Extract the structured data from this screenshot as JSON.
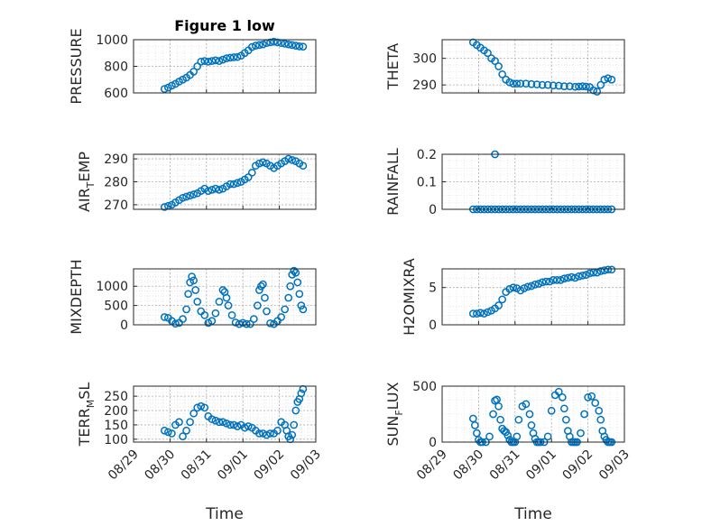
{
  "figure": {
    "title": "Figure 1 low"
  },
  "colors": {
    "marker": "#0072BD",
    "axis": "#262626",
    "grid": "#b0b0b0"
  },
  "chart_data": [
    {
      "type": "scatter",
      "ylabel": "PRESSURE",
      "title": "Figure 1 low",
      "xlim": [
        "08/29",
        "09/03"
      ],
      "ylim": [
        600,
        1000
      ],
      "yticks": [
        600,
        800,
        1000
      ],
      "yticklabels": [
        "600",
        "800",
        "1000"
      ],
      "xticklabels": [],
      "xlabel": "",
      "series": [
        {
          "x": [
            0.85,
            0.95,
            1.05,
            1.15,
            1.25,
            1.35,
            1.45,
            1.55,
            1.65,
            1.75,
            1.85,
            1.95,
            2.05,
            2.15,
            2.25,
            2.35,
            2.45,
            2.55,
            2.65,
            2.75,
            2.85,
            2.95,
            3.05,
            3.15,
            3.25,
            3.35,
            3.45,
            3.55,
            3.65,
            3.75,
            3.85,
            3.95,
            4.05,
            4.15,
            4.25,
            4.35,
            4.45,
            4.55,
            4.65
          ],
          "y": [
            630,
            640,
            655,
            668,
            685,
            700,
            715,
            735,
            760,
            800,
            835,
            840,
            835,
            840,
            845,
            840,
            850,
            860,
            865,
            868,
            870,
            880,
            900,
            920,
            945,
            955,
            960,
            965,
            975,
            980,
            985,
            980,
            975,
            970,
            965,
            960,
            955,
            950,
            948
          ]
        }
      ]
    },
    {
      "type": "scatter",
      "ylabel": "THETA",
      "xlim": [
        "08/29",
        "09/03"
      ],
      "ylim": [
        287,
        307
      ],
      "yticks": [
        290,
        300
      ],
      "yticklabels": [
        "290",
        "300"
      ],
      "xticklabels": [],
      "xlabel": "",
      "series": [
        {
          "x": [
            0.85,
            0.95,
            1.05,
            1.15,
            1.25,
            1.35,
            1.45,
            1.55,
            1.65,
            1.75,
            1.85,
            1.95,
            2.05,
            2.15,
            2.3,
            2.45,
            2.6,
            2.75,
            2.9,
            3.05,
            3.2,
            3.35,
            3.5,
            3.65,
            3.75,
            3.85,
            3.95,
            4.05,
            4.15,
            4.25,
            4.35,
            4.45,
            4.55,
            4.65
          ],
          "y": [
            306,
            305,
            304,
            303,
            302,
            300,
            299,
            297,
            294,
            292,
            291,
            290.5,
            290.5,
            290.5,
            290.5,
            290.3,
            290.2,
            290,
            290,
            289.8,
            289.7,
            289.5,
            289.5,
            289.3,
            289.4,
            289.5,
            289.4,
            289.2,
            288,
            287.5,
            290,
            292,
            292.5,
            292
          ]
        }
      ]
    },
    {
      "type": "scatter",
      "ylabel": "AIR_TEMP",
      "ylabel_main": "AIR",
      "ylabel_sub": "T",
      "ylabel_rest": "EMP",
      "xlim": [
        "08/29",
        "09/03"
      ],
      "ylim": [
        268,
        292
      ],
      "yticks": [
        270,
        280,
        290
      ],
      "yticklabels": [
        "270",
        "280",
        "290"
      ],
      "xticklabels": [],
      "xlabel": "",
      "series": [
        {
          "x": [
            0.85,
            0.95,
            1.05,
            1.15,
            1.25,
            1.35,
            1.45,
            1.55,
            1.65,
            1.75,
            1.85,
            1.95,
            2.05,
            2.15,
            2.25,
            2.35,
            2.45,
            2.55,
            2.65,
            2.75,
            2.85,
            2.95,
            3.05,
            3.15,
            3.25,
            3.35,
            3.45,
            3.55,
            3.65,
            3.75,
            3.85,
            3.95,
            4.05,
            4.15,
            4.25,
            4.35,
            4.45,
            4.55,
            4.65
          ],
          "y": [
            269,
            269.5,
            270,
            271,
            272,
            273,
            273.5,
            274,
            274.5,
            275,
            276,
            277,
            276,
            276.5,
            277,
            276.5,
            277,
            278,
            279,
            279,
            279.5,
            280,
            281,
            282,
            284,
            287,
            288,
            288.5,
            288,
            287,
            286,
            287,
            288,
            289,
            290,
            289.5,
            289,
            288,
            287
          ]
        }
      ]
    },
    {
      "type": "scatter",
      "ylabel": "RAINFALL",
      "xlim": [
        "08/29",
        "09/03"
      ],
      "ylim": [
        0,
        0.2
      ],
      "yticks": [
        0,
        0.1,
        0.2
      ],
      "yticklabels": [
        "0",
        "0.1",
        "0.2"
      ],
      "xticklabels": [],
      "xlabel": "",
      "series": [
        {
          "x": [
            0.85,
            0.95,
            1.05,
            1.15,
            1.25,
            1.35,
            1.45,
            1.55,
            1.65,
            1.75,
            1.85,
            1.95,
            2.05,
            2.15,
            2.25,
            2.35,
            2.45,
            2.55,
            2.65,
            2.75,
            2.85,
            2.95,
            3.05,
            3.15,
            3.25,
            3.35,
            3.45,
            3.55,
            3.65,
            3.75,
            3.85,
            3.95,
            4.05,
            4.15,
            4.25,
            4.35,
            4.45,
            4.55,
            4.65,
            1.45
          ],
          "y": [
            0,
            0,
            0,
            0,
            0,
            0,
            0,
            0,
            0,
            0,
            0,
            0,
            0,
            0,
            0,
            0,
            0,
            0,
            0,
            0,
            0,
            0,
            0,
            0,
            0,
            0,
            0,
            0,
            0,
            0,
            0,
            0,
            0,
            0,
            0,
            0,
            0,
            0,
            0,
            0.2
          ]
        }
      ]
    },
    {
      "type": "scatter",
      "ylabel": "MIXDEPTH",
      "xlim": [
        "08/29",
        "09/03"
      ],
      "ylim": [
        0,
        1450
      ],
      "yticks": [
        0,
        500,
        1000
      ],
      "yticklabels": [
        "0",
        "500",
        "1000"
      ],
      "xticklabels": [],
      "xlabel": "",
      "series": [
        {
          "x": [
            0.85,
            0.95,
            1.05,
            1.15,
            1.25,
            1.35,
            1.45,
            1.5,
            1.55,
            1.6,
            1.65,
            1.7,
            1.75,
            1.85,
            1.95,
            2.05,
            2.15,
            2.25,
            2.35,
            2.45,
            2.5,
            2.55,
            2.6,
            2.7,
            2.8,
            2.9,
            3.0,
            3.1,
            3.2,
            3.3,
            3.4,
            3.45,
            3.5,
            3.55,
            3.6,
            3.65,
            3.75,
            3.85,
            3.95,
            4.05,
            4.15,
            4.25,
            4.3,
            4.35,
            4.4,
            4.45,
            4.5,
            4.55,
            4.6,
            4.65
          ],
          "y": [
            200,
            180,
            100,
            30,
            50,
            150,
            400,
            800,
            1100,
            1250,
            1150,
            900,
            600,
            350,
            250,
            50,
            100,
            300,
            600,
            900,
            850,
            700,
            500,
            250,
            60,
            20,
            50,
            20,
            20,
            150,
            500,
            900,
            1000,
            1050,
            700,
            350,
            40,
            20,
            100,
            200,
            400,
            700,
            1000,
            1300,
            1400,
            1350,
            1100,
            800,
            500,
            400
          ]
        }
      ]
    },
    {
      "type": "scatter",
      "ylabel": "H2OMIXRA",
      "xlim": [
        "08/29",
        "09/03"
      ],
      "ylim": [
        0,
        7.5
      ],
      "yticks": [
        0,
        5
      ],
      "yticklabels": [
        "0",
        "5"
      ],
      "xticklabels": [],
      "xlabel": "",
      "series": [
        {
          "x": [
            0.85,
            0.95,
            1.05,
            1.15,
            1.25,
            1.35,
            1.45,
            1.55,
            1.65,
            1.75,
            1.85,
            1.95,
            2.05,
            2.15,
            2.25,
            2.35,
            2.45,
            2.55,
            2.65,
            2.75,
            2.85,
            2.95,
            3.05,
            3.15,
            3.25,
            3.35,
            3.45,
            3.55,
            3.65,
            3.75,
            3.85,
            3.95,
            4.05,
            4.15,
            4.25,
            4.35,
            4.45,
            4.55,
            4.65
          ],
          "y": [
            1.5,
            1.5,
            1.6,
            1.5,
            1.7,
            1.9,
            2.2,
            2.6,
            3.4,
            4.4,
            4.8,
            5.0,
            4.9,
            4.6,
            4.9,
            5.1,
            5.2,
            5.4,
            5.5,
            5.7,
            5.8,
            5.8,
            6.0,
            6.0,
            6.0,
            6.2,
            6.3,
            6.4,
            6.3,
            6.5,
            6.6,
            6.7,
            6.9,
            7.0,
            7.0,
            7.2,
            7.3,
            7.4,
            7.4
          ]
        }
      ]
    },
    {
      "type": "scatter",
      "ylabel": "TERR_MSL",
      "ylabel_main": "TERR",
      "ylabel_sub": "M",
      "ylabel_rest": "SL",
      "xlim": [
        "08/29",
        "09/03"
      ],
      "ylim": [
        90,
        285
      ],
      "yticks": [
        100,
        150,
        200,
        250
      ],
      "yticklabels": [
        "100",
        "150",
        "200",
        "250"
      ],
      "xticklabels": [
        "08/29",
        "08/30",
        "08/31",
        "09/01",
        "09/02",
        "09/03"
      ],
      "xlabel": "Time",
      "series": [
        {
          "x": [
            0.85,
            0.95,
            1.05,
            1.15,
            1.25,
            1.35,
            1.45,
            1.55,
            1.65,
            1.75,
            1.85,
            1.95,
            2.05,
            2.15,
            2.25,
            2.35,
            2.45,
            2.55,
            2.65,
            2.75,
            2.85,
            2.95,
            3.05,
            3.15,
            3.25,
            3.35,
            3.45,
            3.55,
            3.65,
            3.75,
            3.85,
            3.95,
            4.05,
            4.15,
            4.2,
            4.25,
            4.3,
            4.35,
            4.4,
            4.45,
            4.5,
            4.55,
            4.6,
            4.65
          ],
          "y": [
            130,
            125,
            120,
            150,
            160,
            110,
            130,
            160,
            190,
            210,
            215,
            210,
            180,
            170,
            165,
            160,
            160,
            155,
            150,
            150,
            145,
            150,
            140,
            145,
            140,
            130,
            120,
            120,
            115,
            120,
            120,
            130,
            160,
            150,
            130,
            110,
            100,
            115,
            150,
            200,
            230,
            240,
            260,
            275
          ]
        }
      ]
    },
    {
      "type": "scatter",
      "ylabel": "SUN_FLUX",
      "ylabel_main": "SUN",
      "ylabel_sub": "F",
      "ylabel_rest": "LUX",
      "xlim": [
        "08/29",
        "09/03"
      ],
      "ylim": [
        0,
        500
      ],
      "yticks": [
        0,
        500
      ],
      "yticklabels": [
        "0",
        "500"
      ],
      "xticklabels": [
        "08/29",
        "08/30",
        "08/31",
        "09/01",
        "09/02",
        "09/03"
      ],
      "xlabel": "Time",
      "series": [
        {
          "x": [
            0.85,
            0.9,
            0.95,
            1.0,
            1.05,
            1.1,
            1.2,
            1.3,
            1.4,
            1.45,
            1.5,
            1.55,
            1.6,
            1.65,
            1.7,
            1.75,
            1.8,
            1.85,
            1.9,
            1.95,
            2.0,
            2.05,
            2.1,
            2.2,
            2.3,
            2.4,
            2.45,
            2.5,
            2.55,
            2.6,
            2.65,
            2.7,
            2.8,
            2.9,
            3.0,
            3.1,
            3.2,
            3.3,
            3.35,
            3.4,
            3.45,
            3.5,
            3.55,
            3.6,
            3.65,
            3.7,
            3.8,
            3.9,
            4.0,
            4.1,
            4.2,
            4.3,
            4.35,
            4.4,
            4.45,
            4.5,
            4.55,
            4.6,
            4.65
          ],
          "y": [
            210,
            150,
            80,
            20,
            0,
            0,
            0,
            50,
            250,
            370,
            380,
            320,
            200,
            120,
            100,
            90,
            60,
            20,
            0,
            0,
            0,
            50,
            200,
            320,
            340,
            250,
            150,
            80,
            30,
            0,
            0,
            0,
            0,
            50,
            280,
            420,
            450,
            400,
            300,
            200,
            100,
            50,
            0,
            0,
            0,
            0,
            80,
            250,
            400,
            410,
            350,
            280,
            200,
            100,
            50,
            20,
            0,
            0,
            0
          ]
        }
      ]
    }
  ]
}
